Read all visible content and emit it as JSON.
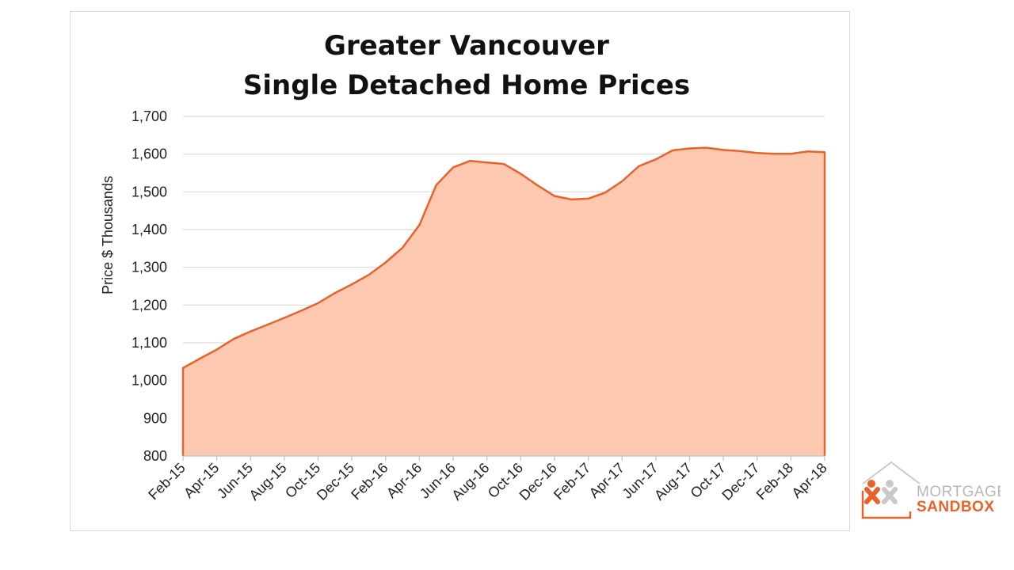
{
  "chart_data": {
    "type": "area",
    "title_lines": [
      "Greater Vancouver",
      "Single Detached Home Prices"
    ],
    "ylabel": "Price $  Thousands",
    "xlabel": "",
    "ylim": [
      800,
      1700
    ],
    "yticks": [
      800,
      900,
      1000,
      1100,
      1200,
      1300,
      1400,
      1500,
      1600,
      1700
    ],
    "ytick_labels": [
      "800",
      "900",
      "1,000",
      "1,100",
      "1,200",
      "1,300",
      "1,400",
      "1,500",
      "1,600",
      "1,700"
    ],
    "x_tick_labels": [
      "Feb-15",
      "Apr-15",
      "Jun-15",
      "Aug-15",
      "Oct-15",
      "Dec-15",
      "Feb-16",
      "Apr-16",
      "Jun-16",
      "Aug-16",
      "Oct-16",
      "Dec-16",
      "Feb-17",
      "Apr-17",
      "Jun-17",
      "Aug-17",
      "Oct-17",
      "Dec-17",
      "Feb-18",
      "Apr-18"
    ],
    "grid": true,
    "legend": "none",
    "series": [
      {
        "x": [
          "Feb-15",
          "Mar-15",
          "Apr-15",
          "May-15",
          "Jun-15",
          "Jul-15",
          "Aug-15",
          "Sep-15",
          "Oct-15",
          "Nov-15",
          "Dec-15",
          "Jan-16",
          "Feb-16",
          "Mar-16",
          "Apr-16",
          "May-16",
          "Jun-16",
          "Jul-16",
          "Aug-16",
          "Sep-16",
          "Oct-16",
          "Nov-16",
          "Dec-16",
          "Jan-17",
          "Feb-17",
          "Mar-17",
          "Apr-17",
          "May-17",
          "Jun-17",
          "Jul-17",
          "Aug-17",
          "Sep-17",
          "Oct-17",
          "Nov-17",
          "Dec-17",
          "Jan-18",
          "Feb-18",
          "Mar-18",
          "Apr-18"
        ],
        "values": [
          1033,
          1058,
          1082,
          1110,
          1130,
          1148,
          1166,
          1185,
          1205,
          1232,
          1255,
          1280,
          1313,
          1352,
          1412,
          1518,
          1565,
          1582,
          1578,
          1574,
          1548,
          1517,
          1489,
          1480,
          1482,
          1498,
          1528,
          1568,
          1586,
          1610,
          1615,
          1617,
          1611,
          1608,
          1603,
          1601,
          1601,
          1607,
          1605
        ]
      }
    ],
    "colors": {
      "line": "#e8622a",
      "fill": "#fcc9b0",
      "grid": "#d9d9d9"
    }
  },
  "logo": {
    "line1": "MORTGAGE",
    "line2": "SANDBOX",
    "colors": {
      "orange": "#e8622a",
      "gray": "#b7b7b7"
    }
  }
}
